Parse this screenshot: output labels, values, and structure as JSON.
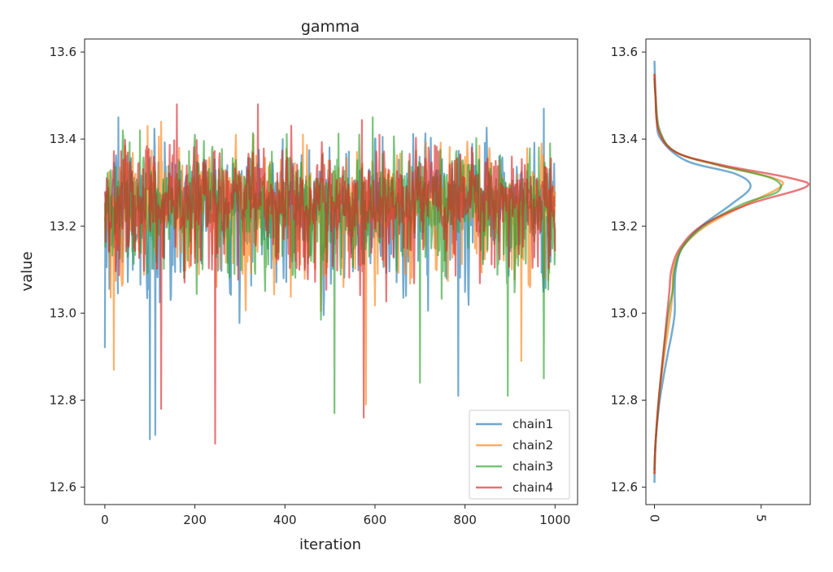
{
  "chart_data": [
    {
      "type": "line",
      "title": "gamma",
      "xlabel": "iteration",
      "ylabel": "value",
      "xlim": [
        -45,
        1050
      ],
      "ylim": [
        12.56,
        13.63
      ],
      "xticks": [
        0,
        200,
        400,
        600,
        800,
        1000
      ],
      "yticks": [
        12.6,
        12.8,
        13.0,
        13.2,
        13.4,
        13.6
      ],
      "xtick_labels": [
        "0",
        "200",
        "400",
        "600",
        "800",
        "1000"
      ],
      "ytick_labels": [
        "12.6",
        "12.8",
        "13.0",
        "13.2",
        "13.4",
        "13.6"
      ],
      "legend_placement": "lower-right",
      "n_iterations": 1000,
      "series": [
        {
          "name": "chain1",
          "color": "#1f77b4",
          "mean": 13.24,
          "spread": 0.09,
          "min": 12.71,
          "max": 13.47,
          "spikes": [
            [
              0,
              12.92
            ],
            [
              30,
              13.45
            ],
            [
              100,
              12.71
            ],
            [
              112,
              12.72
            ],
            [
              395,
              13.4
            ],
            [
              600,
              13.4
            ],
            [
              785,
              12.81
            ],
            [
              975,
              13.47
            ]
          ]
        },
        {
          "name": "chain2",
          "color": "#ff7f0e",
          "mean": 13.25,
          "spread": 0.08,
          "min": 12.79,
          "max": 13.44,
          "spikes": [
            [
              20,
              12.87
            ],
            [
              95,
              13.43
            ],
            [
              125,
              13.44
            ],
            [
              440,
              13.41
            ],
            [
              580,
              12.79
            ],
            [
              925,
              12.89
            ]
          ]
        },
        {
          "name": "chain3",
          "color": "#2ca02c",
          "mean": 13.25,
          "spread": 0.08,
          "min": 12.77,
          "max": 13.45,
          "spikes": [
            [
              200,
              13.41
            ],
            [
              510,
              12.77
            ],
            [
              595,
              13.45
            ],
            [
              700,
              12.84
            ],
            [
              895,
              12.81
            ],
            [
              975,
              12.85
            ]
          ]
        },
        {
          "name": "chain4",
          "color": "#d62728",
          "mean": 13.26,
          "spread": 0.08,
          "min": 12.7,
          "max": 13.48,
          "spikes": [
            [
              160,
              13.48
            ],
            [
              125,
              12.78
            ],
            [
              245,
              12.7
            ],
            [
              340,
              13.48
            ],
            [
              575,
              12.76
            ],
            [
              610,
              13.41
            ]
          ]
        }
      ]
    },
    {
      "type": "line",
      "title": "",
      "xlabel": "",
      "ylabel": "",
      "orientation": "horizontal-density",
      "ylim": [
        12.56,
        13.63
      ],
      "xlim": [
        -0.4,
        7.3
      ],
      "xticks": [
        0,
        5
      ],
      "xtick_labels": [
        "0",
        "5"
      ],
      "xtick_rotation": 90,
      "yticks": [
        12.6,
        12.8,
        13.0,
        13.2,
        13.4,
        13.6
      ],
      "ytick_labels": [
        "12.6",
        "12.8",
        "13.0",
        "13.2",
        "13.4",
        "13.6"
      ],
      "series": [
        {
          "name": "chain1",
          "color": "#1f77b4",
          "y_range": [
            12.61,
            13.58
          ],
          "points": [
            [
              12.61,
              0.0
            ],
            [
              12.7,
              0.05
            ],
            [
              12.8,
              0.25
            ],
            [
              12.9,
              0.6
            ],
            [
              12.95,
              0.8
            ],
            [
              13.0,
              0.95
            ],
            [
              13.05,
              0.95
            ],
            [
              13.1,
              1.0
            ],
            [
              13.15,
              1.3
            ],
            [
              13.2,
              2.2
            ],
            [
              13.25,
              3.6
            ],
            [
              13.29,
              4.5
            ],
            [
              13.32,
              3.8
            ],
            [
              13.35,
              1.5
            ],
            [
              13.4,
              0.3
            ],
            [
              13.45,
              0.1
            ],
            [
              13.5,
              0.05
            ],
            [
              13.58,
              0.0
            ]
          ]
        },
        {
          "name": "chain2",
          "color": "#ff7f0e",
          "y_range": [
            12.63,
            13.55
          ],
          "points": [
            [
              12.63,
              0.0
            ],
            [
              12.7,
              0.05
            ],
            [
              12.8,
              0.2
            ],
            [
              12.9,
              0.45
            ],
            [
              13.0,
              0.75
            ],
            [
              13.05,
              0.85
            ],
            [
              13.1,
              0.9
            ],
            [
              13.15,
              1.3
            ],
            [
              13.2,
              2.4
            ],
            [
              13.25,
              4.3
            ],
            [
              13.29,
              5.9
            ],
            [
              13.31,
              5.6
            ],
            [
              13.34,
              3.0
            ],
            [
              13.37,
              1.0
            ],
            [
              13.42,
              0.2
            ],
            [
              13.5,
              0.05
            ],
            [
              13.55,
              0.0
            ]
          ]
        },
        {
          "name": "chain3",
          "color": "#2ca02c",
          "y_range": [
            12.64,
            13.54
          ],
          "points": [
            [
              12.64,
              0.0
            ],
            [
              12.7,
              0.05
            ],
            [
              12.8,
              0.2
            ],
            [
              12.9,
              0.4
            ],
            [
              13.0,
              0.65
            ],
            [
              13.05,
              0.85
            ],
            [
              13.1,
              0.95
            ],
            [
              13.15,
              1.3
            ],
            [
              13.2,
              2.3
            ],
            [
              13.25,
              4.1
            ],
            [
              13.28,
              5.8
            ],
            [
              13.31,
              5.5
            ],
            [
              13.34,
              3.0
            ],
            [
              13.37,
              1.0
            ],
            [
              13.42,
              0.25
            ],
            [
              13.5,
              0.05
            ],
            [
              13.54,
              0.0
            ]
          ]
        },
        {
          "name": "chain4",
          "color": "#d62728",
          "y_range": [
            12.63,
            13.55
          ],
          "points": [
            [
              12.63,
              0.0
            ],
            [
              12.7,
              0.05
            ],
            [
              12.8,
              0.2
            ],
            [
              12.9,
              0.4
            ],
            [
              13.0,
              0.6
            ],
            [
              13.05,
              0.7
            ],
            [
              13.1,
              0.8
            ],
            [
              13.15,
              1.2
            ],
            [
              13.2,
              2.2
            ],
            [
              13.25,
              4.4
            ],
            [
              13.29,
              7.1
            ],
            [
              13.31,
              6.4
            ],
            [
              13.34,
              3.2
            ],
            [
              13.37,
              1.0
            ],
            [
              13.42,
              0.2
            ],
            [
              13.5,
              0.05
            ],
            [
              13.55,
              0.0
            ]
          ]
        }
      ]
    }
  ]
}
